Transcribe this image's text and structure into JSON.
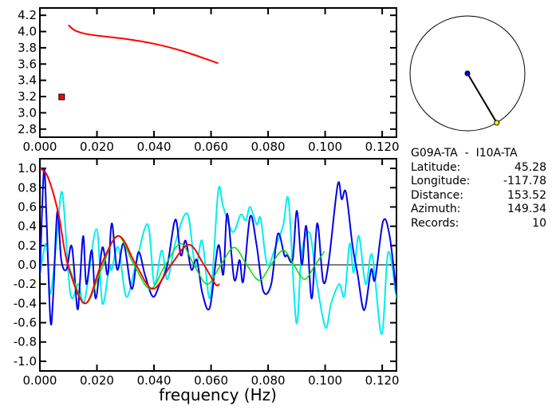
{
  "colors": {
    "observed_a": "#0000ee",
    "observed_b": "#00eeee",
    "model": "#ff0000",
    "fit": "#00dd00",
    "axis": "#000000",
    "station_marker": "#ffff00",
    "center_marker": "#0000cc"
  },
  "info": {
    "title": "G09A-TA  -  I10A-TA",
    "rows": [
      {
        "label": "Latitude:",
        "value": "45.28"
      },
      {
        "label": "Longitude:",
        "value": "-117.78"
      },
      {
        "label": "Distance:",
        "value": "153.52"
      },
      {
        "label": "Azimuth:",
        "value": "149.34"
      },
      {
        "label": "Records:",
        "value": "10"
      }
    ]
  },
  "azimuth_deg": 149.34,
  "chart_data": [
    {
      "type": "line",
      "xlabel": "",
      "ylabel": "",
      "xlim": [
        0,
        0.125
      ],
      "ylim": [
        2.7,
        4.29
      ],
      "xticks": [
        "0.000",
        "0.020",
        "0.040",
        "0.060",
        "0.080",
        "0.100",
        "0.120"
      ],
      "yticks": [
        "2.8",
        "3.0",
        "3.2",
        "3.4",
        "3.6",
        "3.8",
        "4.0",
        "4.2"
      ],
      "series": [
        {
          "color": "#ff0000",
          "points": [
            [
              0.01,
              4.08
            ],
            [
              0.012,
              4.02
            ],
            [
              0.015,
              3.98
            ],
            [
              0.02,
              3.95
            ],
            [
              0.03,
              3.91
            ],
            [
              0.04,
              3.85
            ],
            [
              0.05,
              3.76
            ],
            [
              0.0625,
              3.61
            ]
          ]
        }
      ],
      "markers": [
        {
          "x": 0.0075,
          "y": 3.2,
          "color": "#ff0000",
          "shape": "square"
        }
      ]
    },
    {
      "type": "line",
      "xlabel": "frequency (Hz)",
      "ylabel": "",
      "xlim": [
        0,
        0.125
      ],
      "ylim": [
        -1.1,
        1.1
      ],
      "xticks": [
        "0.000",
        "0.020",
        "0.040",
        "0.060",
        "0.080",
        "0.100",
        "0.120"
      ],
      "yticks": [
        "-1.0",
        "-0.8",
        "-0.6",
        "-0.4",
        "-0.2",
        "0.0",
        "0.2",
        "0.4",
        "0.6",
        "0.8",
        "1.0"
      ],
      "zero_line": true,
      "series": [
        {
          "color": "#00eeee",
          "points": [
            [
              0,
              -0.1
            ],
            [
              0.0023,
              0.22
            ],
            [
              0.0037,
              -0.3
            ],
            [
              0.006,
              0.3
            ],
            [
              0.0079,
              0.74
            ],
            [
              0.0107,
              -0.3
            ],
            [
              0.0135,
              -0.2
            ],
            [
              0.0156,
              -0.38
            ],
            [
              0.0198,
              0.37
            ],
            [
              0.0219,
              -0.4
            ],
            [
              0.0243,
              -0.02
            ],
            [
              0.0252,
              -0.05
            ],
            [
              0.0275,
              0.18
            ],
            [
              0.0303,
              -0.33
            ],
            [
              0.0336,
              0.0
            ],
            [
              0.0378,
              0.42
            ],
            [
              0.0401,
              -0.2
            ],
            [
              0.0427,
              0.15
            ],
            [
              0.0447,
              -0.15
            ],
            [
              0.0475,
              0.23
            ],
            [
              0.0517,
              0.53
            ],
            [
              0.0545,
              -0.02
            ],
            [
              0.0569,
              0.25
            ],
            [
              0.0597,
              -0.34
            ],
            [
              0.0625,
              0.76
            ],
            [
              0.0643,
              0.6
            ],
            [
              0.0676,
              0.34
            ],
            [
              0.0704,
              0.52
            ],
            [
              0.0722,
              0.46
            ],
            [
              0.0737,
              0.6
            ],
            [
              0.076,
              0.42
            ],
            [
              0.0774,
              0.48
            ],
            [
              0.0797,
              0.0
            ],
            [
              0.0825,
              0.18
            ],
            [
              0.0853,
              0.41
            ],
            [
              0.0872,
              0.66
            ],
            [
              0.0899,
              -0.6
            ],
            [
              0.0918,
              0.13
            ],
            [
              0.0946,
              0.33
            ],
            [
              0.0969,
              -0.15
            ],
            [
              0.1001,
              -0.65
            ],
            [
              0.1021,
              -0.4
            ],
            [
              0.1049,
              -0.2
            ],
            [
              0.1068,
              -0.32
            ],
            [
              0.1086,
              0.22
            ],
            [
              0.11,
              -0.08
            ],
            [
              0.1118,
              0.3
            ],
            [
              0.1142,
              -0.2
            ],
            [
              0.1165,
              0.1
            ],
            [
              0.1198,
              -0.72
            ],
            [
              0.1221,
              0.13
            ],
            [
              0.125,
              -0.35
            ]
          ]
        },
        {
          "color": "#0000ee",
          "points": [
            [
              0,
              -0.1
            ],
            [
              0.0014,
              0.98
            ],
            [
              0.0023,
              0.5
            ],
            [
              0.0037,
              -0.58
            ],
            [
              0.0047,
              -0.3
            ],
            [
              0.0061,
              0.55
            ],
            [
              0.0075,
              0.05
            ],
            [
              0.0093,
              -0.05
            ],
            [
              0.0112,
              0.19
            ],
            [
              0.0131,
              -0.45
            ],
            [
              0.014,
              -0.2
            ],
            [
              0.0152,
              0.3
            ],
            [
              0.0163,
              -0.2
            ],
            [
              0.0182,
              0.15
            ],
            [
              0.0196,
              -0.35
            ],
            [
              0.0219,
              0.18
            ],
            [
              0.0238,
              -0.1
            ],
            [
              0.0252,
              0.43
            ],
            [
              0.0271,
              -0.05
            ],
            [
              0.0294,
              0.22
            ],
            [
              0.0322,
              -0.25
            ],
            [
              0.0345,
              0.13
            ],
            [
              0.0368,
              -0.1
            ],
            [
              0.0396,
              -0.33
            ],
            [
              0.042,
              -0.2
            ],
            [
              0.0447,
              0.0
            ],
            [
              0.0475,
              0.47
            ],
            [
              0.0494,
              0.1
            ],
            [
              0.0511,
              0.25
            ],
            [
              0.0531,
              -0.05
            ],
            [
              0.055,
              0.05
            ],
            [
              0.057,
              -0.3
            ],
            [
              0.0596,
              -0.44
            ],
            [
              0.0625,
              0.2
            ],
            [
              0.0643,
              -0.1
            ],
            [
              0.0657,
              0.53
            ],
            [
              0.0681,
              -0.15
            ],
            [
              0.07,
              0.05
            ],
            [
              0.0713,
              -0.17
            ],
            [
              0.0737,
              0.5
            ],
            [
              0.076,
              0.2
            ],
            [
              0.0783,
              -0.27
            ],
            [
              0.0811,
              -0.2
            ],
            [
              0.0834,
              0.32
            ],
            [
              0.0857,
              0.1
            ],
            [
              0.0867,
              0.1
            ],
            [
              0.0886,
              0.05
            ],
            [
              0.0901,
              0.56
            ],
            [
              0.0918,
              0.0
            ],
            [
              0.0934,
              0.4
            ],
            [
              0.0953,
              -0.35
            ],
            [
              0.0972,
              0.43
            ],
            [
              0.0993,
              -0.17
            ],
            [
              0.1012,
              0.02
            ],
            [
              0.1044,
              0.83
            ],
            [
              0.1058,
              0.68
            ],
            [
              0.1073,
              0.75
            ],
            [
              0.1096,
              0.2
            ],
            [
              0.1114,
              -0.1
            ],
            [
              0.1137,
              -0.47
            ],
            [
              0.1161,
              -0.05
            ],
            [
              0.1175,
              -0.15
            ],
            [
              0.1203,
              0.45
            ],
            [
              0.1226,
              0.3
            ],
            [
              0.125,
              -0.3
            ]
          ]
        },
        {
          "color": "#00dd00",
          "points": [
            [
              0.01,
              0.0
            ],
            [
              0.0159,
              -0.4
            ],
            [
              0.0215,
              -0.05
            ],
            [
              0.0272,
              0.3
            ],
            [
              0.033,
              0.0
            ],
            [
              0.0387,
              -0.25
            ],
            [
              0.044,
              0.0
            ],
            [
              0.0494,
              0.22
            ],
            [
              0.054,
              0.0
            ],
            [
              0.0587,
              -0.2
            ],
            [
              0.0634,
              0.0
            ],
            [
              0.0681,
              0.18
            ],
            [
              0.0725,
              0.0
            ],
            [
              0.0769,
              -0.16
            ],
            [
              0.081,
              0.0
            ],
            [
              0.0853,
              0.15
            ],
            [
              0.089,
              0.0
            ],
            [
              0.0928,
              -0.15
            ],
            [
              0.0965,
              0.0
            ],
            [
              0.0998,
              0.14
            ]
          ]
        },
        {
          "color": "#ff0000",
          "points": [
            [
              0,
              1.0
            ],
            [
              0.0028,
              0.91
            ],
            [
              0.0065,
              0.53
            ],
            [
              0.0098,
              0.0
            ],
            [
              0.0159,
              -0.4
            ],
            [
              0.0215,
              0.0
            ],
            [
              0.0276,
              0.3
            ],
            [
              0.0337,
              0.0
            ],
            [
              0.0396,
              -0.25
            ],
            [
              0.046,
              0.0
            ],
            [
              0.0522,
              0.21
            ],
            [
              0.0575,
              0.0
            ],
            [
              0.0615,
              -0.2
            ],
            [
              0.063,
              -0.2
            ]
          ]
        }
      ]
    }
  ]
}
